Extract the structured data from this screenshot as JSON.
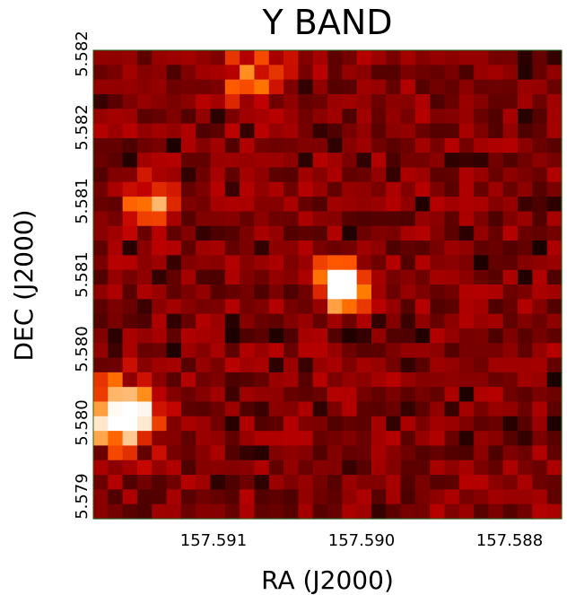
{
  "chart_data": {
    "type": "heatmap",
    "title": "Y BAND",
    "xlabel": "RA (J2000)",
    "ylabel": "DEC (J2000)",
    "x_ticks": [
      "157.591",
      "157.590",
      "157.588"
    ],
    "y_ticks": [
      "5.582",
      "5.582",
      "5.581",
      "5.581",
      "5.580",
      "5.580",
      "5.579"
    ],
    "colormap": "gist_heat",
    "grid": false,
    "image_grid": {
      "cols": 32,
      "rows": 32
    },
    "sources": [
      {
        "name": "source-center",
        "col": 16.5,
        "row": 15.5,
        "peak": 1.0,
        "sigma": 1.1
      },
      {
        "name": "source-lower-left",
        "col": 1.5,
        "row": 24.5,
        "peak": 1.0,
        "sigma": 1.5
      },
      {
        "name": "source-upper-left",
        "col": 3.2,
        "row": 10.2,
        "peak": 0.5,
        "sigma": 1.2
      },
      {
        "name": "source-top",
        "col": 10.5,
        "row": 1.3,
        "peak": 0.35,
        "sigma": 1.6
      }
    ]
  }
}
